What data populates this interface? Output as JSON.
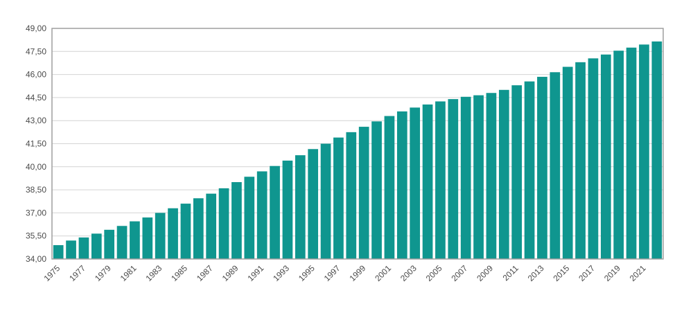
{
  "chart_data": {
    "type": "bar",
    "title": "",
    "xlabel": "",
    "ylabel": "",
    "ylim": [
      34,
      49
    ],
    "yticks": [
      "34,00",
      "35,50",
      "37,00",
      "38,50",
      "40,00",
      "41,50",
      "43,00",
      "44,50",
      "46,00",
      "47,50",
      "49,00"
    ],
    "ytick_values": [
      34,
      35.5,
      37,
      38.5,
      40,
      41.5,
      43,
      44.5,
      46,
      47.5,
      49
    ],
    "grid": true,
    "legend": "none",
    "bar_color": "#0f968f",
    "categories": [
      "1975",
      "1976",
      "1977",
      "1978",
      "1979",
      "1980",
      "1981",
      "1982",
      "1983",
      "1984",
      "1985",
      "1986",
      "1987",
      "1988",
      "1989",
      "1990",
      "1991",
      "1992",
      "1993",
      "1994",
      "1995",
      "1996",
      "1997",
      "1998",
      "1999",
      "2000",
      "2001",
      "2002",
      "2003",
      "2004",
      "2005",
      "2006",
      "2007",
      "2008",
      "2009",
      "2010",
      "2011",
      "2012",
      "2013",
      "2014",
      "2015",
      "2016",
      "2017",
      "2018",
      "2019",
      "2020",
      "2021",
      "2022"
    ],
    "xtick_labels": [
      "1975",
      "",
      "1977",
      "",
      "1979",
      "",
      "1981",
      "",
      "1983",
      "",
      "1985",
      "",
      "1987",
      "",
      "1989",
      "",
      "1991",
      "",
      "1993",
      "",
      "1995",
      "",
      "1997",
      "",
      "1999",
      "",
      "2001",
      "",
      "2003",
      "",
      "2005",
      "",
      "2007",
      "",
      "2009",
      "",
      "2011",
      "",
      "2013",
      "",
      "2015",
      "",
      "2017",
      "",
      "2019",
      "",
      "2021",
      ""
    ],
    "values": [
      34.9,
      35.2,
      35.4,
      35.65,
      35.9,
      36.15,
      36.45,
      36.7,
      37.0,
      37.3,
      37.6,
      37.95,
      38.25,
      38.6,
      39.0,
      39.35,
      39.7,
      40.05,
      40.4,
      40.75,
      41.15,
      41.5,
      41.9,
      42.25,
      42.6,
      42.95,
      43.3,
      43.6,
      43.85,
      44.05,
      44.25,
      44.4,
      44.55,
      44.65,
      44.8,
      45.0,
      45.3,
      45.55,
      45.85,
      46.15,
      46.5,
      46.8,
      47.05,
      47.3,
      47.55,
      47.75,
      47.95,
      48.15
    ]
  }
}
